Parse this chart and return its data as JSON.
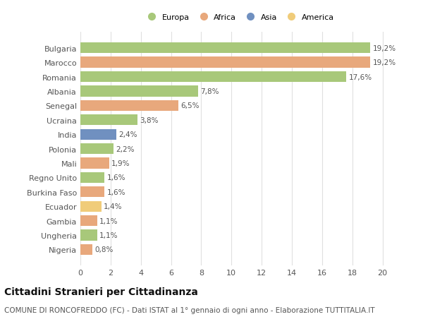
{
  "countries": [
    "Bulgaria",
    "Marocco",
    "Romania",
    "Albania",
    "Senegal",
    "Ucraina",
    "India",
    "Polonia",
    "Mali",
    "Regno Unito",
    "Burkina Faso",
    "Ecuador",
    "Gambia",
    "Ungheria",
    "Nigeria"
  ],
  "values": [
    19.2,
    19.2,
    17.6,
    7.8,
    6.5,
    3.8,
    2.4,
    2.2,
    1.9,
    1.6,
    1.6,
    1.4,
    1.1,
    1.1,
    0.8
  ],
  "labels": [
    "19,2%",
    "19,2%",
    "17,6%",
    "7,8%",
    "6,5%",
    "3,8%",
    "2,4%",
    "2,2%",
    "1,9%",
    "1,6%",
    "1,6%",
    "1,4%",
    "1,1%",
    "1,1%",
    "0,8%"
  ],
  "continents": [
    "Europa",
    "Africa",
    "Europa",
    "Europa",
    "Africa",
    "Europa",
    "Asia",
    "Europa",
    "Africa",
    "Europa",
    "Africa",
    "America",
    "Africa",
    "Europa",
    "Africa"
  ],
  "colors": {
    "Europa": "#a8c87a",
    "Africa": "#e8a87c",
    "Asia": "#7090c0",
    "America": "#f0cc7a"
  },
  "legend_order": [
    "Europa",
    "Africa",
    "Asia",
    "America"
  ],
  "bg_color": "#ffffff",
  "grid_color": "#e0e0e0",
  "xlim": [
    0,
    21
  ],
  "xticks": [
    0,
    2,
    4,
    6,
    8,
    10,
    12,
    14,
    16,
    18,
    20
  ],
  "title": "Cittadini Stranieri per Cittadinanza",
  "subtitle": "COMUNE DI RONCOFREDDO (FC) - Dati ISTAT al 1° gennaio di ogni anno - Elaborazione TUTTITALIA.IT",
  "title_fontsize": 10,
  "subtitle_fontsize": 7.5,
  "label_fontsize": 7.5,
  "tick_fontsize": 8
}
